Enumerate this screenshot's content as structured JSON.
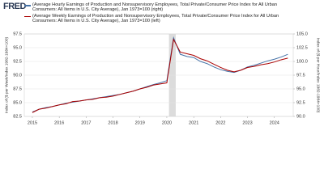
{
  "chart_data": {
    "type": "line",
    "logo": "FRED",
    "y_label": "Index of ($ per Week/Index 1982-1984=100)",
    "y2_label": "Index of ($ per Hour/Index 1982-1984=100)",
    "x": [
      2015.0,
      2015.25,
      2015.5,
      2015.75,
      2016.0,
      2016.25,
      2016.5,
      2016.75,
      2017.0,
      2017.25,
      2017.5,
      2017.75,
      2018.0,
      2018.25,
      2018.5,
      2018.75,
      2019.0,
      2019.25,
      2019.5,
      2019.75,
      2020.0,
      2020.25,
      2020.5,
      2020.75,
      2021.0,
      2021.25,
      2021.5,
      2021.75,
      2022.0,
      2022.25,
      2022.5,
      2022.75,
      2023.0,
      2023.25,
      2023.5,
      2023.75,
      2024.0,
      2024.25,
      2024.5
    ],
    "series": [
      {
        "name": "(Average Hourly Earnings of Production and Nonsupervisory Employees, Total Private/Consumer Price Index for All Urban Consumers: All Items in U.S. City Average), Jan 1973=100 (right)",
        "color": "#4572a7",
        "axis": "y2",
        "values": [
          90.8,
          91.3,
          91.6,
          91.8,
          92.1,
          92.4,
          92.6,
          92.8,
          93.0,
          93.2,
          93.4,
          93.6,
          93.8,
          94.0,
          94.3,
          94.6,
          95.0,
          95.4,
          95.8,
          96.1,
          96.5,
          104.3,
          101.3,
          100.9,
          100.7,
          100.0,
          99.6,
          99.0,
          98.5,
          98.2,
          98.0,
          98.4,
          99.0,
          99.3,
          99.7,
          100.1,
          100.4,
          100.8,
          101.3
        ]
      },
      {
        "name": "(Average Weekly Earnings of Production and Nonsupervisory Employees, Total Private/Consumer Price Index for All Urban Consumers: All Items in U.S. City Average), Jan 1973=100 (left)",
        "color": "#aa0000",
        "axis": "y",
        "values": [
          83.2,
          83.8,
          84.0,
          84.3,
          84.6,
          84.8,
          85.2,
          85.3,
          85.5,
          85.6,
          85.9,
          86.0,
          86.2,
          86.5,
          86.8,
          87.1,
          87.5,
          87.8,
          88.2,
          88.4,
          88.6,
          96.5,
          94.2,
          93.9,
          93.6,
          93.0,
          92.6,
          92.0,
          91.4,
          90.9,
          90.6,
          90.9,
          91.4,
          91.6,
          91.9,
          92.1,
          92.4,
          92.8,
          93.1
        ]
      }
    ],
    "shaded": [
      [
        2020.08,
        2020.33
      ]
    ],
    "xlim": [
      2014.7,
      2024.7
    ],
    "xticks": [
      2015,
      2016,
      2017,
      2018,
      2019,
      2020,
      2021,
      2022,
      2023,
      2024
    ],
    "ylim": [
      82.5,
      97.5
    ],
    "yticks": [
      82.5,
      {
        "value": 85,
        "label": "85.0"
      },
      87.5,
      {
        "value": 90,
        "label": "90.0"
      },
      92.5,
      {
        "value": 95,
        "label": "95.0"
      },
      97.5
    ],
    "y2lim": [
      90,
      105
    ],
    "y2ticks": [
      {
        "value": 90,
        "label": "90.0"
      },
      92.5,
      {
        "value": 95,
        "label": "95.0"
      },
      97.5,
      {
        "value": 100,
        "label": "100.0"
      },
      102.5,
      {
        "value": 105,
        "label": "105.0"
      }
    ],
    "grid": true
  }
}
